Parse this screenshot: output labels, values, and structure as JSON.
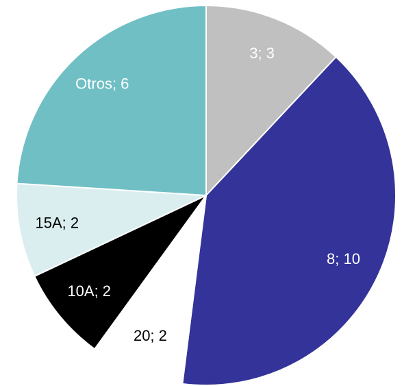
{
  "chart_data": {
    "type": "pie",
    "values": [
      3,
      10,
      2,
      2,
      2,
      6
    ],
    "value_labels": [
      "3; 3",
      "8; 10",
      "20; 2",
      "10A; 2",
      "15A; 2",
      "Otros; 6"
    ],
    "colors": [
      "#c0c0c0",
      "#333399",
      "#ffffff",
      "#000000",
      "#daeef0",
      "#70bfc4"
    ]
  }
}
